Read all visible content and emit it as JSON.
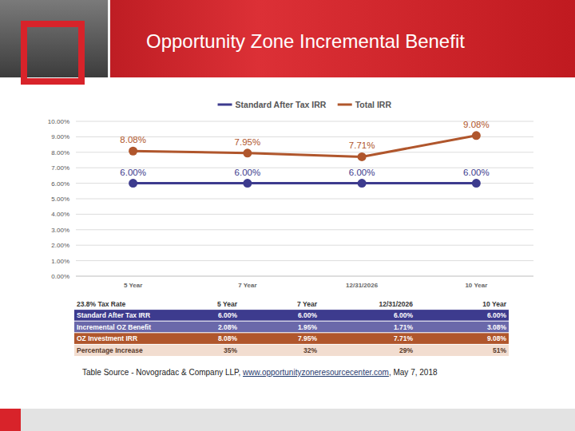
{
  "chart_data": {
    "type": "line",
    "title": "Opportunity Zone Incremental Benefit",
    "categories": [
      "5 Year",
      "7 Year",
      "12/31/2026",
      "10 Year"
    ],
    "series": [
      {
        "name": "Standard After Tax IRR",
        "color": "#3d3b8e",
        "marker": "circle",
        "values": [
          6.0,
          6.0,
          6.0,
          6.0
        ],
        "value_labels": [
          "6.00%",
          "6.00%",
          "6.00%",
          "6.00%"
        ]
      },
      {
        "name": "Total IRR",
        "color": "#b0562c",
        "marker": "circle",
        "values": [
          8.08,
          7.95,
          7.71,
          9.08
        ],
        "value_labels": [
          "8.08%",
          "7.95%",
          "7.71%",
          "9.08%"
        ]
      }
    ],
    "ylim": [
      0,
      10
    ],
    "yticks": [
      {
        "value": 0,
        "label": "0.00%"
      },
      {
        "value": 1,
        "label": "1.00%"
      },
      {
        "value": 2,
        "label": "2.00%"
      },
      {
        "value": 3,
        "label": "3.00%"
      },
      {
        "value": 4,
        "label": "4.00%"
      },
      {
        "value": 5,
        "label": "5.00%"
      },
      {
        "value": 6,
        "label": "6.00%"
      },
      {
        "value": 7,
        "label": "7.00%"
      },
      {
        "value": 8,
        "label": "8.00%"
      },
      {
        "value": 9,
        "label": "9.00%"
      },
      {
        "value": 10,
        "label": "10.00%"
      }
    ],
    "grid": true,
    "legend": "top",
    "data_labels": true
  },
  "table": {
    "header": [
      "23.8% Tax Rate",
      "5 Year",
      "7 Year",
      "12/31/2026",
      "10 Year"
    ],
    "rows": [
      [
        "Standard After Tax IRR",
        "6.00%",
        "6.00%",
        "6.00%",
        "6.00%"
      ],
      [
        "Incremental OZ Benefit",
        "2.08%",
        "1.95%",
        "1.71%",
        "3.08%"
      ],
      [
        "OZ Investment IRR",
        "8.08%",
        "7.95%",
        "7.71%",
        "9.08%"
      ],
      [
        "Percentage Increase",
        "35%",
        "32%",
        "29%",
        "51%"
      ]
    ]
  },
  "source": [
    "Table Source - Novogradac & Company LLP, ",
    "www.opportunityzoneresourcecenter.com",
    ", May 7, 2018"
  ]
}
